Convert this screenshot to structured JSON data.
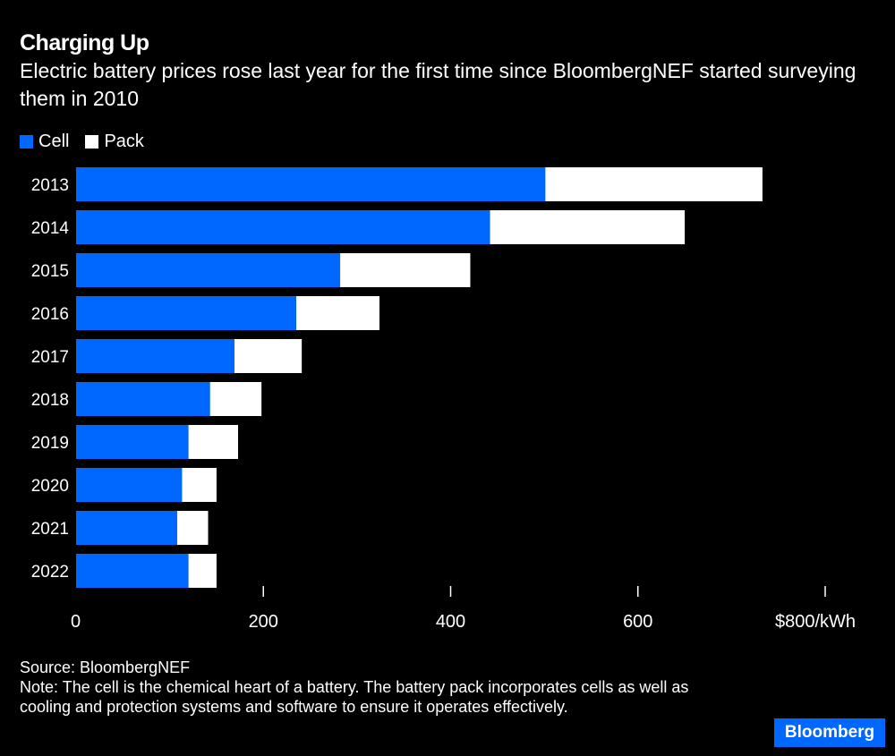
{
  "colors": {
    "cell": "#0068ff",
    "pack": "#ffffff",
    "background": "#000000"
  },
  "chart_data": {
    "type": "bar",
    "orientation": "horizontal",
    "title": "Charging Up",
    "subtitle": "Electric battery prices rose last year for the first time since BloombergNEF started surveying them in 2010",
    "categories": [
      "2013",
      "2014",
      "2015",
      "2016",
      "2017",
      "2018",
      "2019",
      "2020",
      "2021",
      "2022"
    ],
    "series": [
      {
        "name": "Cell",
        "values": [
          501,
          442,
          282,
          235,
          169,
          143,
          120,
          113,
          108,
          120
        ]
      },
      {
        "name": "Pack",
        "values": [
          733,
          650,
          421,
          324,
          241,
          198,
          173,
          150,
          141,
          150
        ]
      }
    ],
    "xlim": [
      0,
      800
    ],
    "xticks": [
      0,
      200,
      400,
      600,
      800
    ],
    "xtick_labels": [
      "0",
      "200",
      "400",
      "600",
      "$800/kWh"
    ],
    "grid": false,
    "legend": "top-left"
  },
  "footer": {
    "source": "Source: BloombergNEF",
    "note": "Note: The cell is the chemical heart of a battery. The battery pack incorporates cells as well as cooling and protection systems and software to ensure it operates effectively.",
    "logo": "Bloomberg"
  }
}
